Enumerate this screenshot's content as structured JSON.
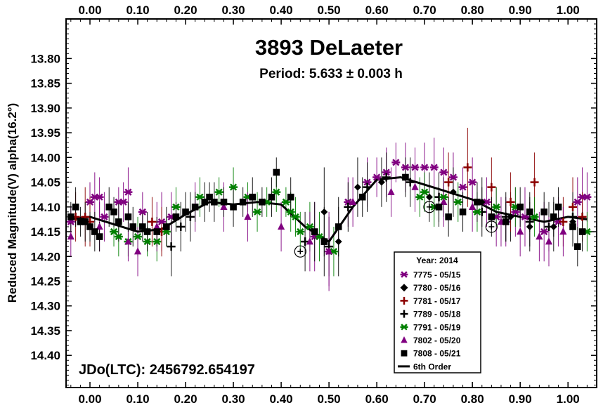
{
  "chart_data": {
    "type": "scatter",
    "title": "3893 DeLaeter",
    "subtitle": "Period: 5.633 ± 0.003 h",
    "ylabel": "Reduced Magnitude(V) alpha(16.2°)",
    "epoch_label": "JDo(LTC): 2456792.654197",
    "xlim": [
      -0.05,
      1.06
    ],
    "ylim": [
      13.72,
      14.465
    ],
    "y_inverted": true,
    "x_ticks": [
      "0.00",
      "0.10",
      "0.20",
      "0.30",
      "0.40",
      "0.50",
      "0.60",
      "0.70",
      "0.80",
      "0.90",
      "1.00"
    ],
    "y_ticks": [
      "13.80",
      "13.85",
      "13.90",
      "13.95",
      "14.00",
      "14.05",
      "14.10",
      "14.15",
      "14.20",
      "14.25",
      "14.30",
      "14.35",
      "14.40"
    ],
    "legend_title": "Year: 2014",
    "legend_position": "bottom-right",
    "colors": {
      "purple": "#800080",
      "black": "#000000",
      "darkred": "#8b0000",
      "green": "#008000"
    },
    "series": [
      {
        "name": "7775 - 05/15",
        "marker": "asterisk",
        "color": "#800080",
        "points": [
          [
            -0.04,
            14.13
          ],
          [
            0.0,
            14.09
          ],
          [
            0.01,
            14.08
          ],
          [
            0.02,
            14.08
          ],
          [
            0.03,
            14.12
          ],
          [
            0.06,
            14.09
          ],
          [
            0.07,
            14.09
          ],
          [
            0.08,
            14.07
          ],
          [
            0.11,
            14.11
          ],
          [
            0.15,
            14.13
          ],
          [
            0.17,
            14.12
          ],
          [
            0.47,
            14.16
          ],
          [
            0.5,
            14.19
          ],
          [
            0.54,
            14.09
          ],
          [
            0.58,
            14.05
          ],
          [
            0.6,
            14.04
          ],
          [
            0.62,
            14.03
          ],
          [
            0.64,
            14.01
          ],
          [
            0.66,
            14.02
          ],
          [
            0.68,
            14.02
          ],
          [
            0.7,
            14.02
          ],
          [
            0.72,
            14.02
          ],
          [
            0.74,
            14.03
          ],
          [
            0.76,
            14.04
          ],
          [
            0.78,
            14.06
          ],
          [
            0.8,
            14.05
          ],
          [
            0.83,
            14.09
          ],
          [
            0.85,
            14.12
          ],
          [
            0.87,
            14.13
          ],
          [
            0.89,
            14.11
          ],
          [
            0.91,
            14.12
          ],
          [
            0.95,
            14.15
          ],
          [
            0.98,
            14.13
          ],
          [
            1.02,
            14.09
          ],
          [
            1.03,
            14.08
          ],
          [
            1.04,
            14.08
          ]
        ],
        "err": [
          0.03,
          0.04,
          0.05,
          0.04,
          0.05,
          0.03,
          0.04,
          0.05,
          0.04,
          0.06,
          0.05,
          0.07,
          0.08,
          0.05,
          0.05,
          0.04,
          0.05,
          0.04,
          0.05,
          0.04,
          0.05,
          0.06,
          0.05,
          0.05,
          0.04,
          0.05,
          0.05,
          0.06,
          0.05,
          0.05,
          0.06,
          0.06,
          0.05,
          0.05,
          0.06,
          0.05
        ]
      },
      {
        "name": "7780 - 05/16",
        "marker": "diamond",
        "color": "#000000",
        "points": [
          [
            0.49,
            14.11
          ],
          [
            0.52,
            14.17
          ],
          [
            0.56,
            14.06
          ],
          [
            0.61,
            14.05
          ],
          [
            0.71,
            14.08
          ],
          [
            0.76,
            14.07
          ],
          [
            0.82,
            14.09
          ],
          [
            0.88,
            14.12
          ],
          [
            0.92,
            14.14
          ],
          [
            0.97,
            14.14
          ],
          [
            1.01,
            14.13
          ]
        ],
        "err": [
          0.09,
          0.07,
          0.06,
          0.05,
          0.05,
          0.05,
          0.05,
          0.05,
          0.05,
          0.05,
          0.05
        ]
      },
      {
        "name": "7781 - 05/17",
        "marker": "plus",
        "color": "#8b0000",
        "points": [
          [
            -0.03,
            14.12
          ],
          [
            -0.01,
            14.12
          ],
          [
            0.0,
            14.13
          ],
          [
            0.13,
            14.13
          ],
          [
            0.15,
            14.15
          ],
          [
            0.75,
            14.05
          ],
          [
            0.79,
            14.02
          ],
          [
            0.84,
            14.06
          ],
          [
            0.88,
            14.09
          ],
          [
            0.93,
            14.05
          ],
          [
            0.99,
            14.13
          ],
          [
            1.01,
            14.1
          ],
          [
            1.03,
            14.12
          ]
        ],
        "err": [
          0.05,
          0.06,
          0.05,
          0.05,
          0.05,
          0.06,
          0.08,
          0.06,
          0.06,
          0.06,
          0.05,
          0.06,
          0.05
        ]
      },
      {
        "name": "7789 - 05/18",
        "marker": "cross",
        "color": "#000000",
        "points": [
          [
            0.17,
            14.18
          ],
          [
            0.19,
            14.14
          ],
          [
            0.21,
            14.12
          ],
          [
            0.45,
            14.17
          ],
          [
            0.5,
            14.18
          ],
          [
            0.54,
            14.1
          ],
          [
            0.58,
            14.06
          ],
          [
            0.62,
            14.04
          ],
          [
            0.67,
            14.05
          ],
          [
            0.73,
            14.08
          ],
          [
            0.82,
            14.11
          ],
          [
            0.87,
            14.12
          ],
          [
            0.92,
            14.13
          ],
          [
            0.96,
            14.14
          ],
          [
            1.01,
            14.12
          ]
        ],
        "err": [
          0.06,
          0.05,
          0.05,
          0.06,
          0.06,
          0.05,
          0.05,
          0.05,
          0.05,
          0.05,
          0.05,
          0.05,
          0.05,
          0.05,
          0.05
        ]
      },
      {
        "name": "7791 - 05/19",
        "marker": "asterisk",
        "color": "#008000",
        "points": [
          [
            0.05,
            14.15
          ],
          [
            0.06,
            14.16
          ],
          [
            0.08,
            14.17
          ],
          [
            0.1,
            14.16
          ],
          [
            0.12,
            14.17
          ],
          [
            0.14,
            14.17
          ],
          [
            0.16,
            14.15
          ],
          [
            0.18,
            14.1
          ],
          [
            0.23,
            14.08
          ],
          [
            0.27,
            14.07
          ],
          [
            0.3,
            14.06
          ],
          [
            0.33,
            14.08
          ],
          [
            0.35,
            14.11
          ],
          [
            0.37,
            14.09
          ],
          [
            0.39,
            14.07
          ],
          [
            0.41,
            14.09
          ],
          [
            0.42,
            14.11
          ],
          [
            0.43,
            14.12
          ],
          [
            0.44,
            14.15
          ],
          [
            0.46,
            14.14
          ],
          [
            0.48,
            14.16
          ],
          [
            0.51,
            14.19
          ],
          [
            0.69,
            14.08
          ],
          [
            0.7,
            14.07
          ],
          [
            0.72,
            14.1
          ],
          [
            0.74,
            14.08
          ],
          [
            0.77,
            14.09
          ],
          [
            0.81,
            14.11
          ],
          [
            0.85,
            14.1
          ],
          [
            0.89,
            14.1
          ],
          [
            0.93,
            14.12
          ],
          [
            1.04,
            14.15
          ]
        ],
        "err": [
          0.03,
          0.04,
          0.03,
          0.04,
          0.03,
          0.04,
          0.03,
          0.04,
          0.04,
          0.03,
          0.04,
          0.03,
          0.04,
          0.03,
          0.04,
          0.03,
          0.04,
          0.04,
          0.04,
          0.05,
          0.05,
          0.05,
          0.04,
          0.04,
          0.04,
          0.04,
          0.04,
          0.04,
          0.04,
          0.04,
          0.04,
          0.04
        ]
      },
      {
        "name": "7802 - 05/20",
        "marker": "triangle",
        "color": "#800080",
        "points": [
          [
            -0.04,
            14.16
          ],
          [
            0.02,
            14.14
          ],
          [
            0.08,
            14.17
          ],
          [
            0.1,
            14.19
          ],
          [
            0.14,
            14.14
          ],
          [
            0.22,
            14.1
          ],
          [
            0.28,
            14.1
          ],
          [
            0.33,
            14.12
          ],
          [
            0.4,
            14.14
          ],
          [
            0.46,
            14.17
          ],
          [
            0.5,
            14.19
          ],
          [
            0.55,
            14.09
          ],
          [
            0.63,
            14.07
          ],
          [
            0.68,
            14.06
          ],
          [
            0.74,
            14.09
          ],
          [
            0.8,
            14.1
          ],
          [
            0.86,
            14.13
          ],
          [
            0.9,
            14.15
          ],
          [
            0.94,
            14.16
          ],
          [
            0.96,
            14.17
          ],
          [
            0.99,
            14.15
          ]
        ],
        "err": [
          0.04,
          0.05,
          0.04,
          0.05,
          0.05,
          0.05,
          0.05,
          0.05,
          0.05,
          0.06,
          0.07,
          0.05,
          0.05,
          0.05,
          0.05,
          0.05,
          0.05,
          0.05,
          0.05,
          0.05,
          0.05
        ]
      },
      {
        "name": "7808 - 05/21",
        "marker": "square",
        "color": "#000000",
        "points": [
          [
            -0.04,
            14.12
          ],
          [
            -0.03,
            14.1
          ],
          [
            -0.02,
            14.13
          ],
          [
            -0.01,
            14.13
          ],
          [
            0.0,
            14.14
          ],
          [
            0.01,
            14.15
          ],
          [
            0.02,
            14.16
          ],
          [
            0.04,
            14.1
          ],
          [
            0.05,
            14.11
          ],
          [
            0.06,
            14.13
          ],
          [
            0.08,
            14.12
          ],
          [
            0.09,
            14.14
          ],
          [
            0.11,
            14.14
          ],
          [
            0.12,
            14.15
          ],
          [
            0.14,
            14.15
          ],
          [
            0.16,
            14.14
          ],
          [
            0.18,
            14.12
          ],
          [
            0.2,
            14.11
          ],
          [
            0.22,
            14.1
          ],
          [
            0.24,
            14.09
          ],
          [
            0.25,
            14.08
          ],
          [
            0.26,
            14.09
          ],
          [
            0.28,
            14.09
          ],
          [
            0.3,
            14.1
          ],
          [
            0.32,
            14.09
          ],
          [
            0.34,
            14.08
          ],
          [
            0.36,
            14.09
          ],
          [
            0.38,
            14.08
          ],
          [
            0.39,
            14.03
          ],
          [
            0.42,
            14.08
          ],
          [
            0.47,
            14.15
          ],
          [
            0.49,
            14.17
          ],
          [
            0.52,
            14.14
          ],
          [
            0.57,
            14.08
          ],
          [
            0.66,
            14.04
          ],
          [
            0.73,
            14.1
          ],
          [
            0.75,
            14.12
          ],
          [
            0.78,
            14.11
          ],
          [
            0.81,
            14.09
          ],
          [
            0.84,
            14.12
          ],
          [
            0.87,
            14.13
          ],
          [
            0.9,
            14.1
          ],
          [
            0.92,
            14.11
          ],
          [
            0.95,
            14.11
          ],
          [
            0.97,
            14.12
          ],
          [
            0.98,
            14.1
          ],
          [
            1.01,
            14.14
          ],
          [
            1.02,
            14.18
          ],
          [
            1.03,
            14.15
          ]
        ],
        "err": [
          0.03,
          0.04,
          0.03,
          0.04,
          0.03,
          0.04,
          0.03,
          0.04,
          0.03,
          0.04,
          0.03,
          0.04,
          0.03,
          0.04,
          0.03,
          0.04,
          0.03,
          0.04,
          0.03,
          0.04,
          0.03,
          0.04,
          0.03,
          0.04,
          0.03,
          0.04,
          0.03,
          0.04,
          0.03,
          0.04,
          0.06,
          0.07,
          0.06,
          0.04,
          0.04,
          0.04,
          0.04,
          0.04,
          0.04,
          0.04,
          0.04,
          0.04,
          0.04,
          0.04,
          0.04,
          0.04,
          0.04,
          0.04,
          0.04
        ]
      }
    ],
    "fit": {
      "name": "6th Order",
      "points": [
        [
          -0.04,
          14.125
        ],
        [
          0.0,
          14.12
        ],
        [
          0.05,
          14.135
        ],
        [
          0.1,
          14.15
        ],
        [
          0.15,
          14.145
        ],
        [
          0.2,
          14.115
        ],
        [
          0.25,
          14.09
        ],
        [
          0.3,
          14.095
        ],
        [
          0.35,
          14.09
        ],
        [
          0.4,
          14.095
        ],
        [
          0.45,
          14.14
        ],
        [
          0.5,
          14.17
        ],
        [
          0.55,
          14.1
        ],
        [
          0.6,
          14.045
        ],
        [
          0.65,
          14.04
        ],
        [
          0.7,
          14.055
        ],
        [
          0.75,
          14.07
        ],
        [
          0.8,
          14.085
        ],
        [
          0.85,
          14.11
        ],
        [
          0.9,
          14.12
        ],
        [
          0.95,
          14.13
        ],
        [
          1.0,
          14.12
        ],
        [
          1.04,
          14.125
        ]
      ]
    },
    "circled_points": [
      [
        0.44,
        14.19
      ],
      [
        0.71,
        14.1
      ],
      [
        0.84,
        14.14
      ]
    ]
  }
}
